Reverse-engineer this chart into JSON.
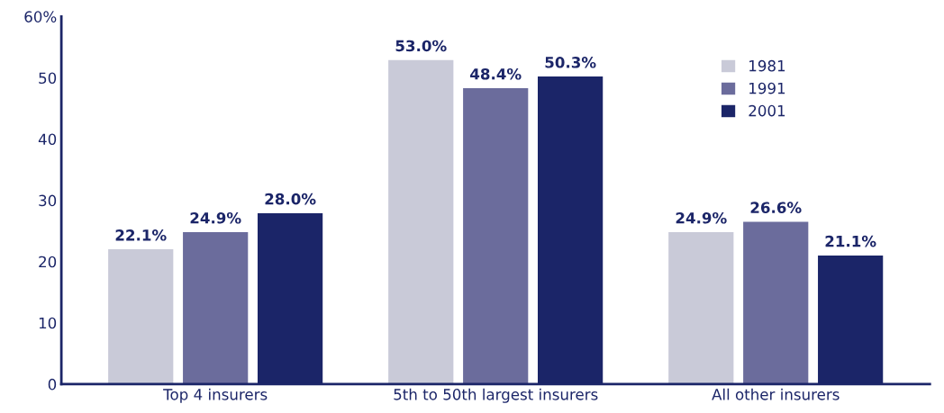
{
  "chart_data": {
    "type": "bar",
    "categories": [
      "Top 4 insurers",
      "5th to 50th largest insurers",
      "All other insurers"
    ],
    "series": [
      {
        "name": "1981",
        "color": "#c9cad8",
        "values": [
          22.1,
          53.0,
          24.9
        ],
        "value_labels": [
          "22.1%",
          "53.0%",
          "24.9%"
        ]
      },
      {
        "name": "1991",
        "color": "#6b6c9c",
        "values": [
          24.9,
          48.4,
          26.6
        ],
        "value_labels": [
          "24.9%",
          "48.4%",
          "26.6%"
        ]
      },
      {
        "name": "2001",
        "color": "#1b2568",
        "values": [
          28.0,
          50.3,
          21.1
        ],
        "value_labels": [
          "28.0%",
          "50.3%",
          "21.1%"
        ]
      }
    ],
    "ylim": [
      0,
      60
    ],
    "yticks": [
      0,
      10,
      20,
      30,
      40,
      50,
      {
        "value": 60,
        "label": "60%"
      }
    ],
    "legend": "top right",
    "grid": false
  }
}
